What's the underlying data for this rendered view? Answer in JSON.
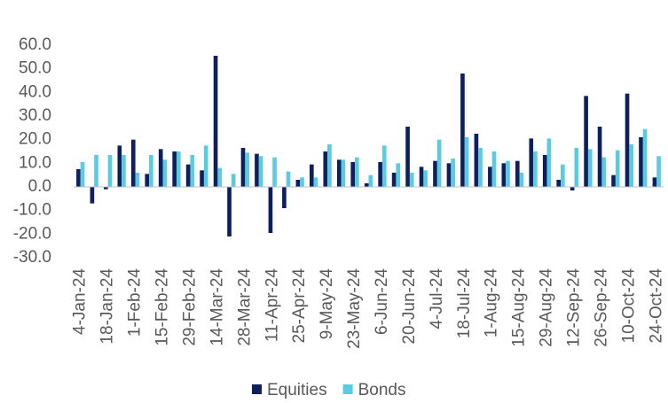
{
  "chart_data": {
    "type": "bar",
    "categories": [
      "4-Jan-24",
      null,
      "18-Jan-24",
      null,
      "1-Feb-24",
      null,
      "15-Feb-24",
      null,
      "29-Feb-24",
      null,
      "14-Mar-24",
      null,
      "28-Mar-24",
      null,
      "11-Apr-24",
      null,
      "25-Apr-24",
      null,
      "9-May-24",
      null,
      "23-May-24",
      null,
      "6-Jun-24",
      null,
      "20-Jun-24",
      null,
      "4-Jul-24",
      null,
      "18-Jul-24",
      null,
      "1-Aug-24",
      null,
      "15-Aug-24",
      null,
      "29-Aug-24",
      null,
      "12-Sep-24",
      null,
      "26-Sep-24",
      null,
      "10-Oct-24",
      null,
      "24-Oct-24"
    ],
    "series": [
      {
        "name": "Equities",
        "color": "#0d1f5c",
        "values": [
          7.5,
          -7,
          -1,
          17.5,
          20,
          5.5,
          16,
          15,
          9.5,
          7,
          55.5,
          -21,
          16.5,
          14,
          -19.5,
          -9,
          3,
          9.5,
          15,
          11.5,
          10.5,
          1.5,
          10.5,
          6,
          25.5,
          8.5,
          11,
          10,
          48,
          22.5,
          8.5,
          10,
          11,
          20.5,
          13.5,
          3,
          -1.5,
          38.5,
          25.5,
          5,
          39.5,
          21,
          4
        ]
      },
      {
        "name": "Bonds",
        "color": "#5bcbe0",
        "values": [
          10.5,
          13.5,
          13.5,
          13.5,
          6,
          13.5,
          11.5,
          15,
          13.5,
          17.5,
          8,
          5.5,
          14.5,
          13,
          12.5,
          6.5,
          4,
          4,
          18,
          11.5,
          12.5,
          5,
          17.5,
          10,
          6,
          7,
          20,
          12,
          21,
          16.5,
          15,
          11,
          6,
          15,
          20.5,
          9.5,
          16.5,
          16,
          12.5,
          15.5,
          18,
          24.5,
          13
        ]
      }
    ],
    "ylim": [
      -30,
      60
    ],
    "yticks": [
      {
        "value": -30,
        "label": "-30.0"
      },
      {
        "value": -20,
        "label": "-20.0"
      },
      {
        "value": -10,
        "label": "-10.0"
      },
      {
        "value": 0,
        "label": "0.0"
      },
      {
        "value": 10,
        "label": "10.0"
      },
      {
        "value": 20,
        "label": "20.0"
      },
      {
        "value": 30,
        "label": "30.0"
      },
      {
        "value": 40,
        "label": "40.0"
      },
      {
        "value": 50,
        "label": "50.0"
      },
      {
        "value": 60,
        "label": "60.0"
      }
    ],
    "grid": false,
    "legend": "bottom"
  }
}
